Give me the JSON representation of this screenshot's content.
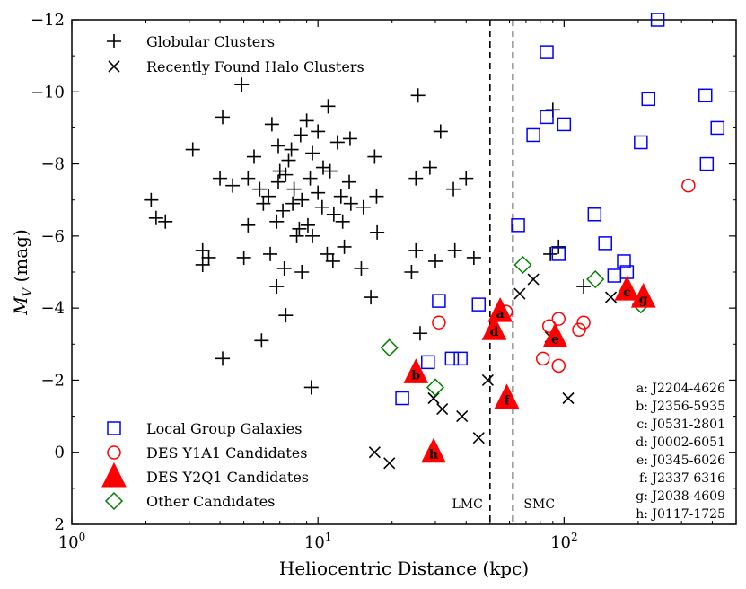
{
  "chart_data": {
    "type": "scatter",
    "xlabel": "Heliocentric Distance (kpc)",
    "ylabel": "M_V (mag)",
    "xscale": "log",
    "xlim": [
      1,
      500
    ],
    "ylim": [
      2,
      -12
    ],
    "x_ticks": [
      {
        "value": 1,
        "base": "10",
        "exp": "0"
      },
      {
        "value": 10,
        "base": "10",
        "exp": "1"
      },
      {
        "value": 100,
        "base": "10",
        "exp": "2"
      }
    ],
    "y_ticks": [
      {
        "value": -12,
        "label": "−12"
      },
      {
        "value": -10,
        "label": "−10"
      },
      {
        "value": -8,
        "label": "−8"
      },
      {
        "value": -6,
        "label": "−6"
      },
      {
        "value": -4,
        "label": "−4"
      },
      {
        "value": -2,
        "label": "−2"
      },
      {
        "value": 0,
        "label": "0"
      },
      {
        "value": 2,
        "label": "2"
      }
    ],
    "vlines": [
      {
        "x": 50,
        "label": "LMC"
      },
      {
        "x": 62,
        "label": "SMC"
      }
    ],
    "legend_top": [
      {
        "series": "globular",
        "label": "Globular Clusters"
      },
      {
        "series": "halo",
        "label": "Recently Found Halo Clusters"
      }
    ],
    "legend_bottom": [
      {
        "series": "lgg",
        "label": "Local Group Galaxies"
      },
      {
        "series": "y1",
        "label": "DES Y1A1 Candidates"
      },
      {
        "series": "y2",
        "label": "DES Y2Q1 Candidates"
      },
      {
        "series": "other",
        "label": "Other Candidates"
      }
    ],
    "series": {
      "globular": {
        "name": "Globular Clusters",
        "marker": "plus",
        "color": "#000000",
        "points": [
          [
            4.9,
            -10.2
          ],
          [
            4.1,
            -9.3
          ],
          [
            11,
            -9.6
          ],
          [
            25.5,
            -9.9
          ],
          [
            6.5,
            -9.1
          ],
          [
            9,
            -9.2
          ],
          [
            8.5,
            -8.8
          ],
          [
            10,
            -8.9
          ],
          [
            12,
            -8.6
          ],
          [
            3.1,
            -8.4
          ],
          [
            5.5,
            -8.2
          ],
          [
            6.9,
            -8.5
          ],
          [
            7.6,
            -8.1
          ],
          [
            9.5,
            -8.3
          ],
          [
            10.5,
            -7.9
          ],
          [
            13.5,
            -8.7
          ],
          [
            17,
            -8.2
          ],
          [
            4,
            -7.6
          ],
          [
            4.5,
            -7.4
          ],
          [
            5.2,
            -7.6
          ],
          [
            5.8,
            -7.3
          ],
          [
            6.3,
            -7.1
          ],
          [
            6.9,
            -7.5
          ],
          [
            7.4,
            -7.7
          ],
          [
            8,
            -7.3
          ],
          [
            8.6,
            -7.0
          ],
          [
            9.3,
            -7.6
          ],
          [
            10,
            -7.2
          ],
          [
            11.2,
            -7.8
          ],
          [
            12.4,
            -7.1
          ],
          [
            13.4,
            -7.5
          ],
          [
            15.3,
            -6.8
          ],
          [
            17.3,
            -7.1
          ],
          [
            2.2,
            -6.5
          ],
          [
            2.4,
            -6.4
          ],
          [
            5.2,
            -6.3
          ],
          [
            6,
            -6.9
          ],
          [
            6.8,
            -6.4
          ],
          [
            7.2,
            -6.7
          ],
          [
            7.9,
            -6.9
          ],
          [
            8.4,
            -6.2
          ],
          [
            9.1,
            -6.3
          ],
          [
            10.4,
            -6.8
          ],
          [
            11.6,
            -6.6
          ],
          [
            13.6,
            -6.9
          ],
          [
            17.4,
            -6.1
          ],
          [
            3.4,
            -5.6
          ],
          [
            3.6,
            -5.4
          ],
          [
            5,
            -5.4
          ],
          [
            6.4,
            -5.5
          ],
          [
            7.3,
            -5.1
          ],
          [
            8.6,
            -5.0
          ],
          [
            10.9,
            -5.5
          ],
          [
            12.8,
            -5.7
          ],
          [
            15,
            -5.1
          ],
          [
            6.8,
            -4.6
          ],
          [
            7.4,
            -3.8
          ],
          [
            5.9,
            -3.1
          ],
          [
            4.1,
            -2.6
          ],
          [
            9.4,
            -1.8
          ],
          [
            2.1,
            -7.0
          ],
          [
            3.4,
            -5.2
          ],
          [
            7,
            -7.8
          ],
          [
            7.8,
            -8.4
          ],
          [
            12.6,
            -6.4
          ],
          [
            16.4,
            -4.3
          ],
          [
            8.2,
            -6.0
          ],
          [
            9.5,
            -6.0
          ],
          [
            11.5,
            -5.3
          ],
          [
            24,
            -5.0
          ],
          [
            25,
            -5.6
          ],
          [
            26,
            -3.3
          ],
          [
            25,
            -7.6
          ],
          [
            28.5,
            -7.9
          ],
          [
            30,
            -5.3
          ],
          [
            31.5,
            -8.9
          ],
          [
            36,
            -5.6
          ],
          [
            40,
            -7.6
          ],
          [
            43,
            -5.4
          ],
          [
            35.5,
            -7.3
          ],
          [
            88,
            -5.5
          ],
          [
            95,
            -5.7
          ],
          [
            120,
            -4.6
          ],
          [
            90,
            -9.5
          ]
        ]
      },
      "halo": {
        "name": "Recently Found Halo Clusters",
        "marker": "x",
        "color": "#000000",
        "points": [
          [
            17,
            0.0
          ],
          [
            19.5,
            0.3
          ],
          [
            29.5,
            -1.5
          ],
          [
            32,
            -1.2
          ],
          [
            38.5,
            -1.0
          ],
          [
            45,
            -0.4
          ],
          [
            49,
            -2.0
          ],
          [
            66,
            -4.4
          ],
          [
            75,
            -4.8
          ],
          [
            88,
            -3.2
          ],
          [
            104,
            -1.5
          ],
          [
            155,
            -4.3
          ]
        ]
      },
      "lgg": {
        "name": "Local Group Galaxies",
        "marker": "square",
        "color": "#0000ff",
        "points": [
          [
            22,
            -1.5
          ],
          [
            28,
            -2.5
          ],
          [
            31,
            -4.2
          ],
          [
            35,
            -2.6
          ],
          [
            38,
            -2.6
          ],
          [
            45,
            -4.1
          ],
          [
            65,
            -6.3
          ],
          [
            75,
            -8.8
          ],
          [
            85,
            -11.1
          ],
          [
            85,
            -9.3
          ],
          [
            95,
            -5.5
          ],
          [
            100,
            -9.1
          ],
          [
            133,
            -6.6
          ],
          [
            147,
            -5.8
          ],
          [
            160,
            -4.9
          ],
          [
            175,
            -5.3
          ],
          [
            180,
            -5.0
          ],
          [
            205,
            -8.6
          ],
          [
            220,
            -9.8
          ],
          [
            240,
            -12.0
          ],
          [
            375,
            -9.9
          ],
          [
            380,
            -8.0
          ],
          [
            420,
            -9.0
          ]
        ]
      },
      "y1": {
        "name": "DES Y1A1 Candidates",
        "marker": "circle",
        "color": "#ff0000",
        "points": [
          [
            31,
            -3.6
          ],
          [
            58,
            -3.9
          ],
          [
            82,
            -2.6
          ],
          [
            87,
            -3.5
          ],
          [
            95,
            -3.7
          ],
          [
            95,
            -2.4
          ],
          [
            115,
            -3.4
          ],
          [
            120,
            -3.6
          ],
          [
            320,
            -7.4
          ]
        ]
      },
      "y2": {
        "name": "DES Y2Q1 Candidates",
        "marker": "triangle",
        "color": "#ff0000",
        "points": [
          {
            "x": 29.5,
            "y": 0.0,
            "id": "h"
          },
          {
            "x": 25.0,
            "y": -2.2,
            "id": "b"
          },
          {
            "x": 52.0,
            "y": -3.4,
            "id": "d"
          },
          {
            "x": 55.0,
            "y": -3.9,
            "id": "a"
          },
          {
            "x": 58.5,
            "y": -1.5,
            "id": "f"
          },
          {
            "x": 92.0,
            "y": -3.2,
            "id": "e"
          },
          {
            "x": 180.0,
            "y": -4.5,
            "id": "c"
          },
          {
            "x": 210.0,
            "y": -4.3,
            "id": "g"
          }
        ]
      },
      "other": {
        "name": "Other Candidates",
        "marker": "diamond",
        "color": "#008000",
        "points": [
          [
            19.5,
            -2.9
          ],
          [
            30,
            -1.8
          ],
          [
            68,
            -5.2
          ],
          [
            134,
            -4.8
          ],
          [
            205,
            -4.1
          ]
        ]
      }
    },
    "id_list": [
      "a: J2204-4626",
      "b: J2356-5935",
      "c: J0531-2801",
      "d: J0002-6051",
      "e: J0345-6026",
      "f: J2337-6316",
      "g: J2038-4609",
      "h: J0117-1725"
    ]
  }
}
